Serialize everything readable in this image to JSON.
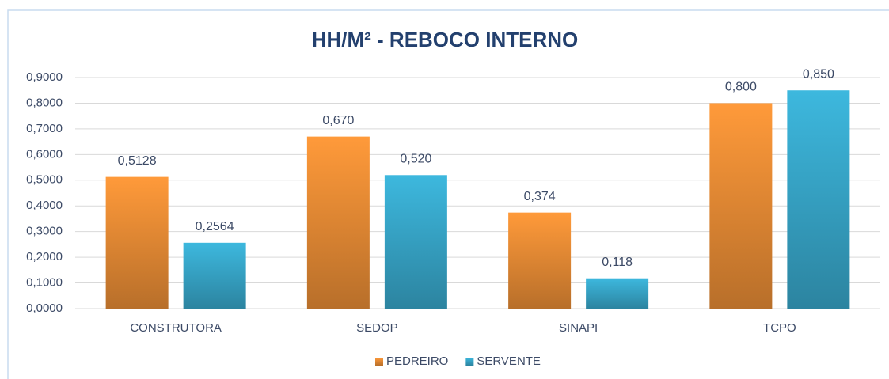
{
  "chart_data": {
    "type": "bar",
    "title": "HH/M² - REBOCO INTERNO",
    "categories": [
      "CONSTRUTORA",
      "SEDOP",
      "SINAPI",
      "TCPO"
    ],
    "series": [
      {
        "name": "PEDREIRO",
        "color": "#ff9a3a",
        "values": [
          0.5128,
          0.67,
          0.374,
          0.8
        ],
        "value_labels": [
          "0,5128",
          "0,670",
          "0,374",
          "0,800"
        ]
      },
      {
        "name": "SERVENTE",
        "color": "#3db8de",
        "values": [
          0.2564,
          0.52,
          0.118,
          0.85
        ],
        "value_labels": [
          "0,2564",
          "0,520",
          "0,118",
          "0,850"
        ]
      }
    ],
    "ylim": [
      0,
      0.9
    ],
    "yticks": [
      {
        "value": 0,
        "label": "0,0000"
      },
      {
        "value": 0.1,
        "label": "0,1000"
      },
      {
        "value": 0.2,
        "label": "0,2000"
      },
      {
        "value": 0.3,
        "label": "0,3000"
      },
      {
        "value": 0.4,
        "label": "0,4000"
      },
      {
        "value": 0.5,
        "label": "0,5000"
      },
      {
        "value": 0.6,
        "label": "0,6000"
      },
      {
        "value": 0.7,
        "label": "0,7000"
      },
      {
        "value": 0.8,
        "label": "0,8000"
      },
      {
        "value": 0.9,
        "label": "0,9000"
      }
    ],
    "grid": true,
    "legend": "bottom"
  }
}
